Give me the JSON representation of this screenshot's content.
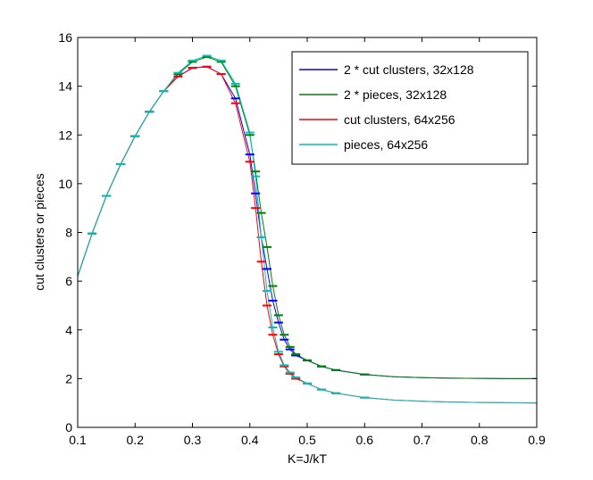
{
  "chart_data": {
    "type": "line",
    "title": "",
    "xlabel": "K=J/kT",
    "ylabel": "cut clusters or pieces",
    "xlim": [
      0.1,
      0.9
    ],
    "ylim": [
      0,
      16
    ],
    "xticks": [
      0.1,
      0.2,
      0.3,
      0.4,
      0.5,
      0.6,
      0.7,
      0.8,
      0.9
    ],
    "xtick_labels": [
      "0.1",
      "0.2",
      "0.3",
      "0.4",
      "0.5",
      "0.6",
      "0.7",
      "0.8",
      "0.9"
    ],
    "yticks": [
      0,
      2,
      4,
      6,
      8,
      10,
      12,
      14,
      16
    ],
    "ytick_labels": [
      "0",
      "2",
      "4",
      "6",
      "8",
      "10",
      "12",
      "14",
      "16"
    ],
    "grid": false,
    "legend_position": "top-right",
    "series": [
      {
        "name": "2 * cut clusters, 32x128",
        "color": "#0000ff",
        "x": [
          0.1,
          0.125,
          0.15,
          0.175,
          0.2,
          0.225,
          0.25,
          0.275,
          0.3,
          0.325,
          0.35,
          0.375,
          0.4,
          0.41,
          0.42,
          0.43,
          0.44,
          0.45,
          0.46,
          0.47,
          0.48,
          0.5,
          0.525,
          0.55,
          0.6,
          0.65,
          0.7,
          0.75,
          0.8,
          0.85,
          0.9
        ],
        "y": [
          6.2,
          7.95,
          9.5,
          10.8,
          11.95,
          12.95,
          13.8,
          14.4,
          14.75,
          14.8,
          14.5,
          13.5,
          11.2,
          9.6,
          7.8,
          6.5,
          5.2,
          4.3,
          3.6,
          3.2,
          2.95,
          2.75,
          2.5,
          2.35,
          2.17,
          2.08,
          2.04,
          2.02,
          2.01,
          2.0,
          2.0
        ]
      },
      {
        "name": "2 * pieces, 32x128",
        "color": "#008000",
        "x": [
          0.1,
          0.125,
          0.15,
          0.175,
          0.2,
          0.225,
          0.25,
          0.275,
          0.3,
          0.325,
          0.35,
          0.375,
          0.4,
          0.41,
          0.42,
          0.43,
          0.44,
          0.45,
          0.46,
          0.47,
          0.48,
          0.5,
          0.525,
          0.55,
          0.6,
          0.65,
          0.7,
          0.75,
          0.8,
          0.85,
          0.9
        ],
        "y": [
          6.2,
          7.95,
          9.5,
          10.8,
          11.95,
          12.95,
          13.8,
          14.5,
          15.0,
          15.2,
          15.0,
          14.0,
          12.0,
          10.5,
          8.8,
          7.4,
          5.8,
          4.6,
          3.8,
          3.3,
          3.0,
          2.75,
          2.5,
          2.35,
          2.17,
          2.08,
          2.04,
          2.02,
          2.01,
          2.0,
          2.0
        ]
      },
      {
        "name": "cut clusters, 64x256",
        "color": "#ff0000",
        "x": [
          0.1,
          0.125,
          0.15,
          0.175,
          0.2,
          0.225,
          0.25,
          0.275,
          0.3,
          0.325,
          0.35,
          0.375,
          0.4,
          0.41,
          0.42,
          0.43,
          0.44,
          0.45,
          0.46,
          0.47,
          0.48,
          0.5,
          0.525,
          0.55,
          0.6,
          0.65,
          0.7,
          0.75,
          0.8,
          0.85,
          0.9
        ],
        "y": [
          6.2,
          7.95,
          9.5,
          10.8,
          11.95,
          12.95,
          13.8,
          14.4,
          14.75,
          14.8,
          14.5,
          13.3,
          10.9,
          9.0,
          6.8,
          5.0,
          3.8,
          3.0,
          2.5,
          2.2,
          2.0,
          1.8,
          1.55,
          1.4,
          1.22,
          1.12,
          1.07,
          1.04,
          1.02,
          1.01,
          1.0
        ]
      },
      {
        "name": "pieces, 64x256",
        "color": "#00bfbf",
        "x": [
          0.1,
          0.125,
          0.15,
          0.175,
          0.2,
          0.225,
          0.25,
          0.275,
          0.3,
          0.325,
          0.35,
          0.375,
          0.4,
          0.41,
          0.42,
          0.43,
          0.44,
          0.45,
          0.46,
          0.47,
          0.48,
          0.5,
          0.525,
          0.55,
          0.6,
          0.65,
          0.7,
          0.75,
          0.8,
          0.85,
          0.9
        ],
        "y": [
          6.2,
          7.95,
          9.5,
          10.8,
          11.95,
          12.95,
          13.8,
          14.55,
          15.05,
          15.25,
          15.05,
          14.1,
          12.1,
          10.3,
          7.8,
          5.6,
          4.1,
          3.1,
          2.55,
          2.25,
          2.05,
          1.8,
          1.55,
          1.4,
          1.22,
          1.12,
          1.07,
          1.04,
          1.02,
          1.01,
          1.0
        ]
      }
    ]
  }
}
